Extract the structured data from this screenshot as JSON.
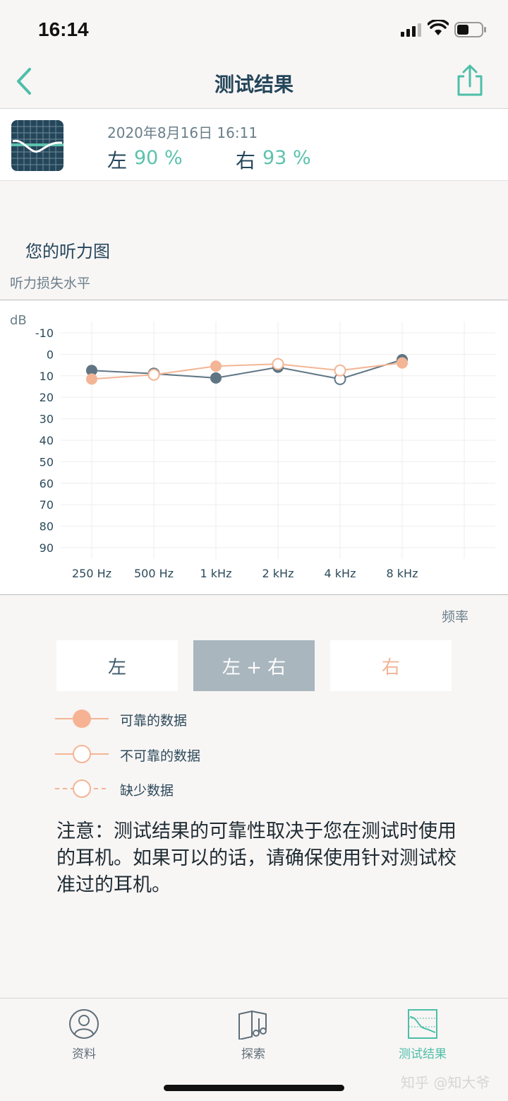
{
  "status_bar": {
    "time": "16:14"
  },
  "nav": {
    "title": "测试结果"
  },
  "summary": {
    "date": "2020年8月16日 16:11",
    "left_label": "左",
    "left_value": "90 %",
    "right_label": "右",
    "right_value": "93 %"
  },
  "section": {
    "title": "您的听力图",
    "subtitle": "听力损失水平"
  },
  "chart_data": {
    "type": "line",
    "ylabel": "dB",
    "xlabel": "频率",
    "categories": [
      "250 Hz",
      "500 Hz",
      "1 kHz",
      "2 kHz",
      "4 kHz",
      "8 kHz"
    ],
    "y_ticks": [
      -10,
      0,
      10,
      20,
      30,
      40,
      50,
      60,
      70,
      80,
      90
    ],
    "ylim": [
      -10,
      90
    ],
    "y_inverted": true,
    "series": [
      {
        "color": "#5f7584",
        "values": [
          7.5,
          9,
          11,
          6,
          11.5,
          2.5
        ],
        "reliable": [
          true,
          false,
          true,
          true,
          false,
          true
        ]
      },
      {
        "color": "#f3b595",
        "values": [
          11.5,
          9.5,
          5.5,
          4.5,
          7.5,
          4
        ],
        "reliable": [
          true,
          false,
          true,
          false,
          false,
          true
        ]
      }
    ],
    "grid": true
  },
  "segments": {
    "left": "左",
    "both": "左 + 右",
    "right": "右",
    "selected": "左 + 右"
  },
  "legend": [
    {
      "label": "可靠的数据",
      "style": "filled"
    },
    {
      "label": "不可靠的数据",
      "style": "hollow"
    },
    {
      "label": "缺少数据",
      "style": "dashed"
    }
  ],
  "note": "注意：测试结果的可靠性取决于您在测试时使用的耳机。如果可以的话，请确保使用针对测试校准过的耳机。",
  "tabs": [
    {
      "label": "资料",
      "icon": "profile-icon",
      "color": "#5e6e78"
    },
    {
      "label": "探索",
      "icon": "explore-icon",
      "color": "#5e6e78"
    },
    {
      "label": "测试结果",
      "icon": "results-icon",
      "color": "#4dbfa8",
      "active": true
    }
  ],
  "watermark": "知乎 @知大爷",
  "colors": {
    "accent": "#5cc2ad",
    "left_series": "#5f7584",
    "right_series": "#f3b595",
    "selected_segment": "#a9b6be"
  }
}
